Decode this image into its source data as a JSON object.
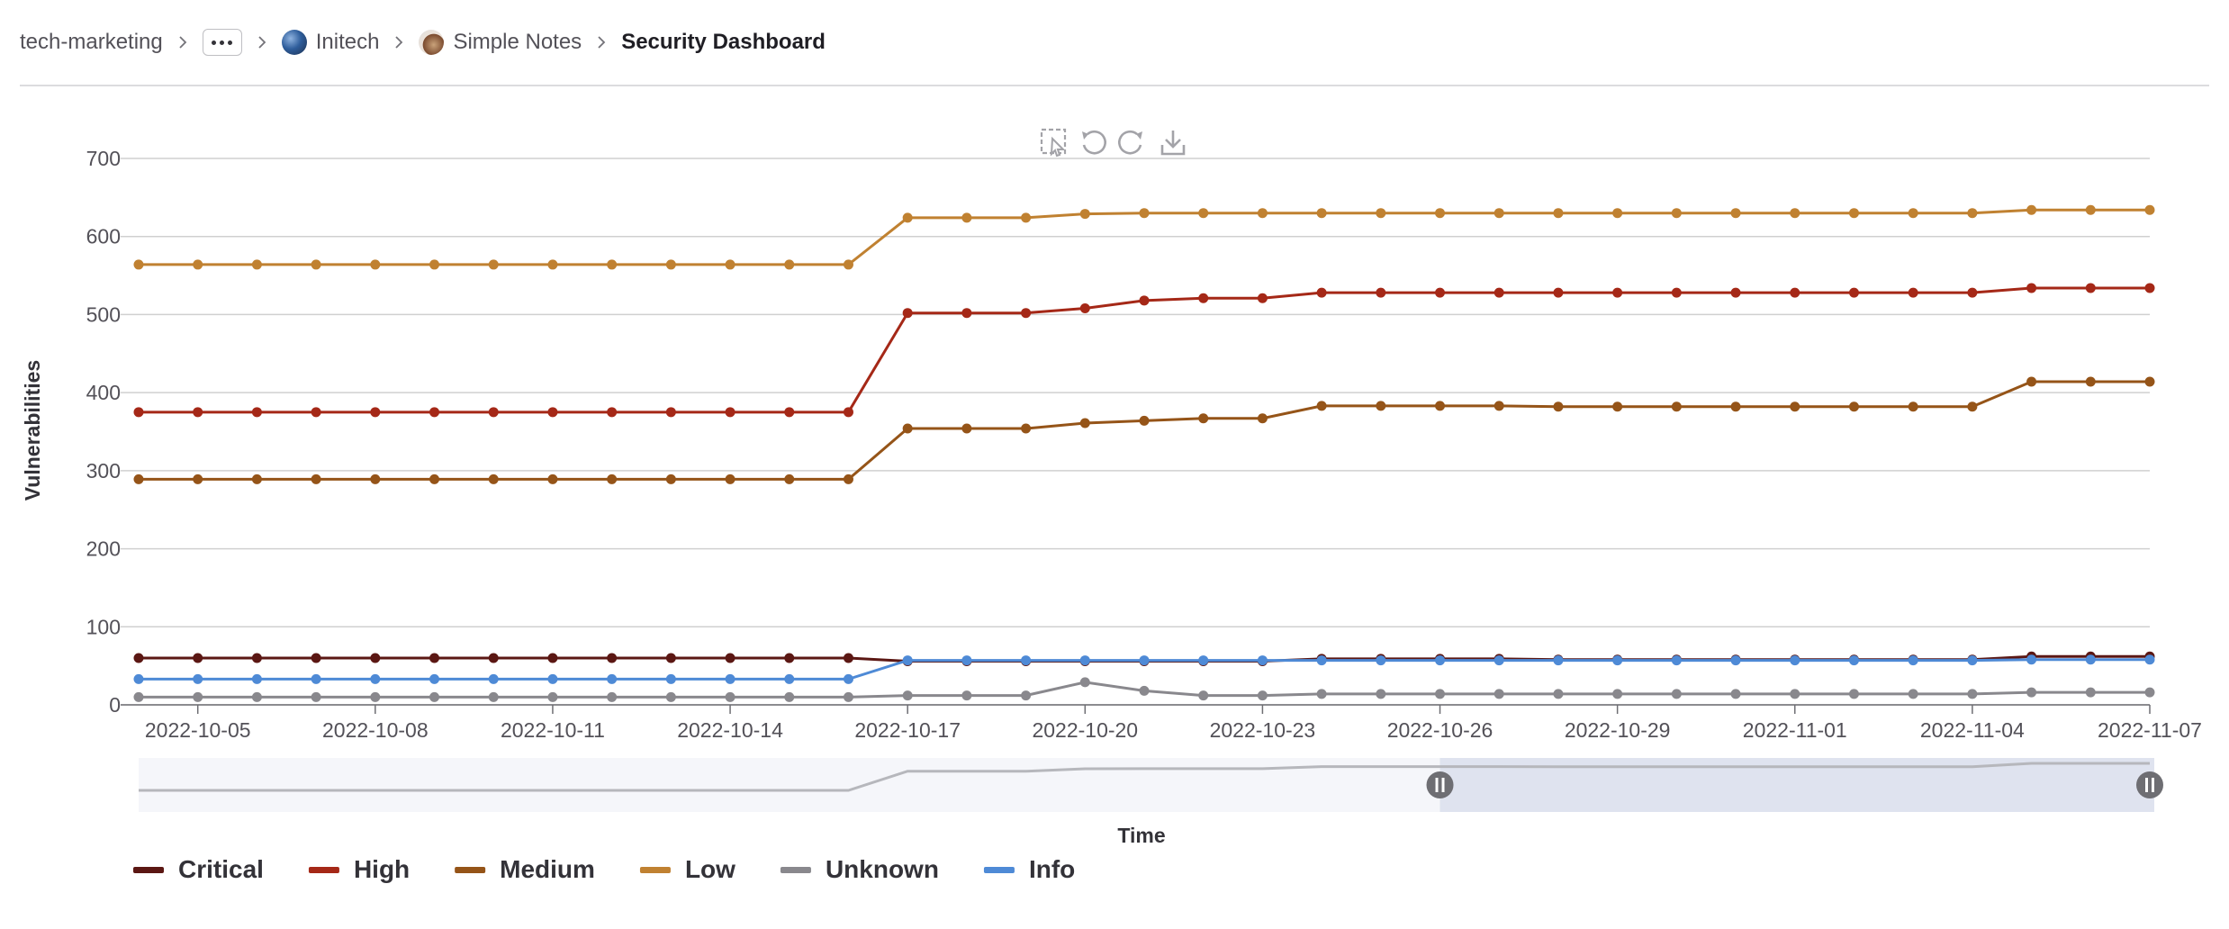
{
  "breadcrumb": {
    "items": [
      {
        "label": "tech-marketing"
      },
      {
        "label": "Initech"
      },
      {
        "label": "Simple Notes"
      },
      {
        "label": "Security Dashboard"
      }
    ]
  },
  "toolbar": {
    "icons": [
      "select-zoom-icon",
      "undo-zoom-icon",
      "restore-icon",
      "download-icon"
    ]
  },
  "colors": {
    "Critical": "#5b1713",
    "High": "#a52817",
    "Medium": "#955418",
    "Low": "#c08131",
    "Unknown": "#89888d",
    "Info": "#4e8ad6",
    "grid": "#d0d0d0",
    "axis_text": "#535158",
    "slider_fill": "#dfe3ef"
  },
  "chart_data": {
    "type": "line",
    "ylabel": "Vulnerabilities",
    "xlabel": "Time",
    "ylim": [
      0,
      700
    ],
    "yticks": [
      "0",
      "100",
      "200",
      "300",
      "400",
      "500",
      "600",
      "700"
    ],
    "x_start": "2022-10-04",
    "x_end": "2022-11-07",
    "x_tick_labels": [
      "2022-10-05",
      "2022-10-08",
      "2022-10-11",
      "2022-10-14",
      "2022-10-17",
      "2022-10-20",
      "2022-10-23",
      "2022-10-26",
      "2022-10-29",
      "2022-11-01",
      "2022-11-04",
      "2022-11-07"
    ],
    "x": [
      "2022-10-04",
      "2022-10-05",
      "2022-10-06",
      "2022-10-07",
      "2022-10-08",
      "2022-10-09",
      "2022-10-10",
      "2022-10-11",
      "2022-10-12",
      "2022-10-13",
      "2022-10-14",
      "2022-10-15",
      "2022-10-16",
      "2022-10-17",
      "2022-10-18",
      "2022-10-19",
      "2022-10-20",
      "2022-10-21",
      "2022-10-22",
      "2022-10-23",
      "2022-10-24",
      "2022-10-25",
      "2022-10-26",
      "2022-10-27",
      "2022-10-28",
      "2022-10-29",
      "2022-10-30",
      "2022-10-31",
      "2022-11-01",
      "2022-11-02",
      "2022-11-03",
      "2022-11-04",
      "2022-11-05",
      "2022-11-06",
      "2022-11-07"
    ],
    "series": [
      {
        "name": "Critical",
        "values": [
          60,
          60,
          60,
          60,
          60,
          60,
          60,
          60,
          60,
          60,
          60,
          60,
          60,
          56,
          56,
          56,
          56,
          56,
          56,
          56,
          59,
          59,
          59,
          59,
          58,
          58,
          58,
          58,
          58,
          58,
          58,
          58,
          62,
          62,
          62
        ]
      },
      {
        "name": "High",
        "values": [
          375,
          375,
          375,
          375,
          375,
          375,
          375,
          375,
          375,
          375,
          375,
          375,
          375,
          502,
          502,
          502,
          508,
          518,
          521,
          521,
          528,
          528,
          528,
          528,
          528,
          528,
          528,
          528,
          528,
          528,
          528,
          528,
          534,
          534,
          534
        ]
      },
      {
        "name": "Medium",
        "values": [
          289,
          289,
          289,
          289,
          289,
          289,
          289,
          289,
          289,
          289,
          289,
          289,
          289,
          354,
          354,
          354,
          361,
          364,
          367,
          367,
          383,
          383,
          383,
          383,
          382,
          382,
          382,
          382,
          382,
          382,
          382,
          382,
          414,
          414,
          414
        ]
      },
      {
        "name": "Low",
        "values": [
          564,
          564,
          564,
          564,
          564,
          564,
          564,
          564,
          564,
          564,
          564,
          564,
          564,
          624,
          624,
          624,
          629,
          630,
          630,
          630,
          630,
          630,
          630,
          630,
          630,
          630,
          630,
          630,
          630,
          630,
          630,
          630,
          634,
          634,
          634
        ]
      },
      {
        "name": "Unknown",
        "values": [
          10,
          10,
          10,
          10,
          10,
          10,
          10,
          10,
          10,
          10,
          10,
          10,
          10,
          12,
          12,
          12,
          29,
          18,
          12,
          12,
          14,
          14,
          14,
          14,
          14,
          14,
          14,
          14,
          14,
          14,
          14,
          14,
          16,
          16,
          16
        ]
      },
      {
        "name": "Info",
        "values": [
          33,
          33,
          33,
          33,
          33,
          33,
          33,
          33,
          33,
          33,
          33,
          33,
          33,
          57,
          57,
          57,
          57,
          57,
          57,
          57,
          57,
          57,
          57,
          57,
          57,
          57,
          57,
          57,
          57,
          57,
          57,
          57,
          58,
          58,
          58
        ]
      }
    ],
    "legend_position": "bottom-left",
    "grid": true,
    "data_zoom": {
      "window_start": "2022-10-26",
      "window_end": "2022-11-07"
    }
  }
}
